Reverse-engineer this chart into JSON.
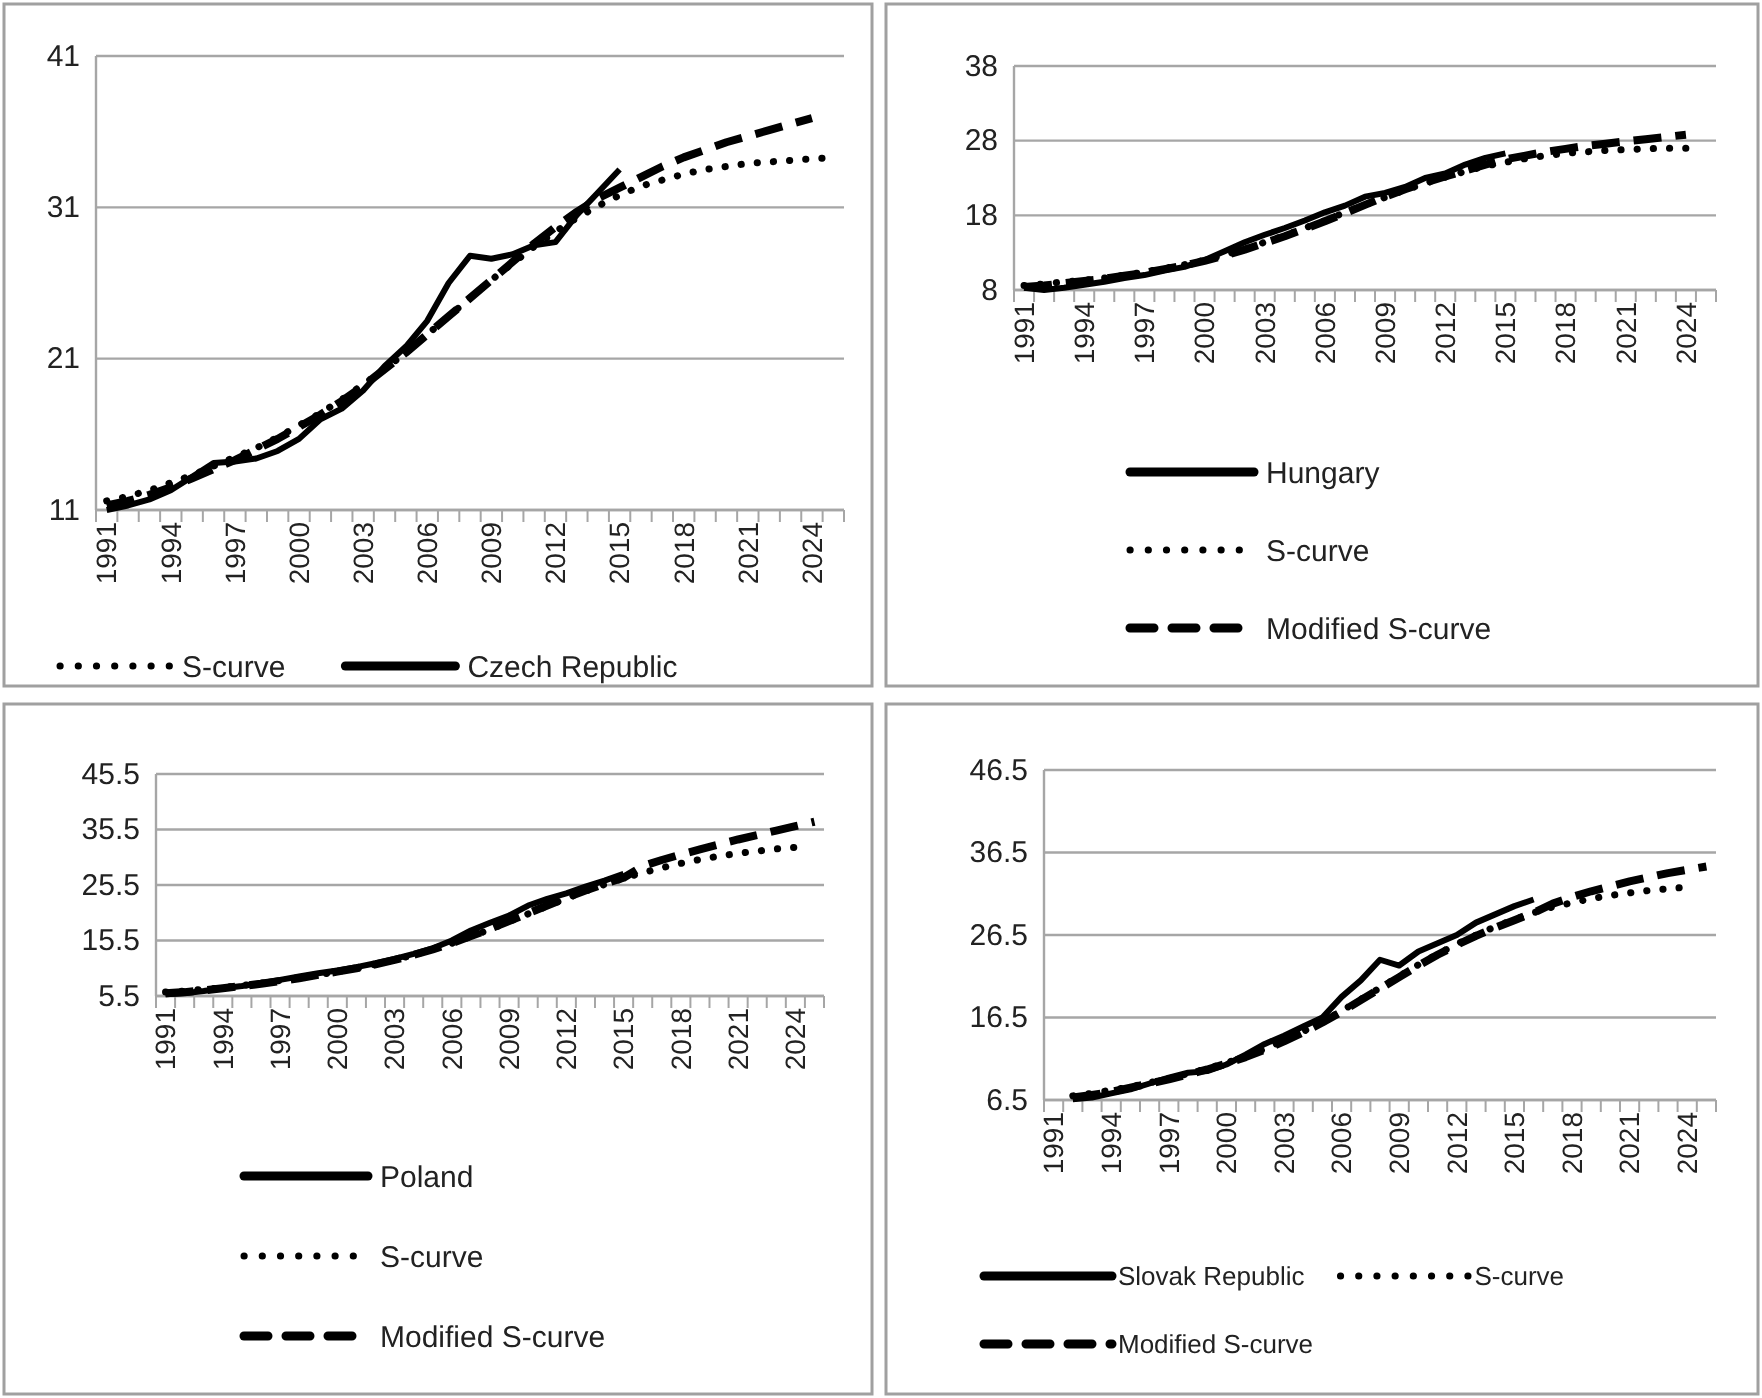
{
  "chart_data": [
    {
      "type": "line",
      "categories": [
        "1991",
        null,
        null,
        "1994",
        null,
        null,
        "1997",
        null,
        null,
        "2000",
        null,
        null,
        "2003",
        null,
        null,
        "2006",
        null,
        null,
        "2009",
        null,
        null,
        "2012",
        null,
        null,
        "2015",
        null,
        null,
        "2018",
        null,
        null,
        "2021",
        null,
        null,
        "2024",
        null
      ],
      "ylim": [
        11,
        41
      ],
      "yticks": [
        11,
        21,
        31,
        41
      ],
      "grid": "y",
      "legend": "bottom",
      "series": [
        {
          "name": "S-curve",
          "color": "#000000",
          "line_style": "dotted",
          "values": [
            11.6,
            11.9,
            12.3,
            12.8,
            13.3,
            13.9,
            14.5,
            15.1,
            15.8,
            16.6,
            17.4,
            18.3,
            19.3,
            20.3,
            21.4,
            22.6,
            23.8,
            25.0,
            26.2,
            27.3,
            28.4,
            29.4,
            30.3,
            31.1,
            31.8,
            32.4,
            32.8,
            33.2,
            33.5,
            33.7,
            33.9,
            34.0,
            34.1,
            34.2,
            34.3
          ]
        },
        {
          "name": "Czech Republic",
          "color": "#000000",
          "line_style": "solid",
          "values": [
            11.0,
            11.3,
            11.7,
            12.3,
            13.2,
            14.1,
            14.2,
            14.4,
            14.9,
            15.7,
            17.0,
            17.7,
            18.9,
            20.5,
            21.8,
            23.5,
            26.0,
            27.8,
            27.6,
            27.9,
            28.5,
            28.7,
            30.5,
            32.0,
            33.5,
            null,
            null,
            null,
            null,
            null,
            null,
            null,
            null,
            null,
            null
          ]
        },
        {
          "color": "#000000",
          "line_style": "dashed",
          "values": [
            11.3,
            11.6,
            12.0,
            12.5,
            13.1,
            13.7,
            14.3,
            15.0,
            15.7,
            16.5,
            17.3,
            18.2,
            19.2,
            20.3,
            21.4,
            22.6,
            23.8,
            25.0,
            26.2,
            27.4,
            28.6,
            29.7,
            30.7,
            31.6,
            32.3,
            33.0,
            33.7,
            34.3,
            34.8,
            35.3,
            35.7,
            36.1,
            36.5,
            36.9,
            null
          ]
        }
      ]
    },
    {
      "type": "line",
      "categories": [
        "1991",
        null,
        null,
        "1994",
        null,
        null,
        "1997",
        null,
        null,
        "2000",
        null,
        null,
        "2003",
        null,
        null,
        "2006",
        null,
        null,
        "2009",
        null,
        null,
        "2012",
        null,
        null,
        "2015",
        null,
        null,
        "2018",
        null,
        null,
        "2021",
        null,
        null,
        "2024",
        null
      ],
      "ylim": [
        8,
        38
      ],
      "yticks": [
        8,
        18,
        28,
        38
      ],
      "grid": "y",
      "legend": "bottom",
      "series": [
        {
          "name": "Hungary",
          "color": "#000000",
          "line_style": "solid",
          "values": [
            8.3,
            8.0,
            8.3,
            8.7,
            9.1,
            9.6,
            10.0,
            10.6,
            11.1,
            12.0,
            13.2,
            14.4,
            15.4,
            16.3,
            17.3,
            18.4,
            19.3,
            20.5,
            21.0,
            21.8,
            23.0,
            23.6,
            24.8,
            25.7,
            26.3,
            null,
            null,
            null,
            null,
            null,
            null,
            null,
            null,
            null,
            null
          ]
        },
        {
          "name": "S-curve",
          "color": "#000000",
          "line_style": "dotted",
          "values": [
            8.6,
            8.8,
            9.1,
            9.3,
            9.6,
            10.0,
            10.4,
            10.9,
            11.4,
            12.0,
            12.7,
            13.5,
            14.4,
            15.3,
            16.3,
            17.3,
            18.4,
            19.4,
            20.4,
            21.4,
            22.3,
            23.1,
            23.9,
            24.6,
            25.1,
            25.6,
            26.0,
            26.3,
            26.5,
            26.7,
            26.8,
            26.9,
            27.0,
            27.0,
            null
          ]
        },
        {
          "name": "Modified S-curve",
          "color": "#000000",
          "line_style": "dashed",
          "values": [
            8.4,
            8.6,
            8.9,
            9.2,
            9.5,
            9.9,
            10.3,
            10.8,
            11.3,
            11.9,
            12.6,
            13.4,
            14.3,
            15.2,
            16.2,
            17.2,
            18.3,
            19.4,
            20.5,
            21.5,
            22.4,
            23.2,
            24.0,
            24.8,
            25.5,
            26.0,
            26.5,
            26.9,
            27.3,
            27.6,
            27.9,
            28.2,
            28.5,
            28.8,
            null
          ]
        }
      ]
    },
    {
      "type": "line",
      "categories": [
        "1991",
        null,
        null,
        "1994",
        null,
        null,
        "1997",
        null,
        null,
        "2000",
        null,
        null,
        "2003",
        null,
        null,
        "2006",
        null,
        null,
        "2009",
        null,
        null,
        "2012",
        null,
        null,
        "2015",
        null,
        null,
        "2018",
        null,
        null,
        "2021",
        null,
        null,
        "2024",
        null
      ],
      "ylim": [
        5.5,
        45.5
      ],
      "yticks": [
        5.5,
        15.5,
        25.5,
        35.5,
        45.5
      ],
      "grid": "y",
      "legend": "bottom",
      "series": [
        {
          "name": "Poland",
          "color": "#000000",
          "line_style": "solid",
          "values": [
            5.8,
            6.0,
            6.4,
            6.9,
            7.3,
            7.8,
            8.4,
            9.0,
            9.6,
            10.1,
            10.7,
            11.4,
            12.2,
            13.1,
            14.1,
            15.5,
            17.3,
            18.7,
            20.0,
            21.8,
            23.0,
            24.0,
            25.2,
            26.3,
            27.5,
            null,
            null,
            null,
            null,
            null,
            null,
            null,
            null,
            null,
            null
          ]
        },
        {
          "name": "S-curve",
          "color": "#000000",
          "line_style": "dotted",
          "values": [
            6.2,
            6.4,
            6.7,
            7.0,
            7.4,
            7.8,
            8.3,
            8.8,
            9.3,
            9.9,
            10.5,
            11.2,
            12.0,
            12.9,
            13.9,
            15.0,
            16.2,
            17.5,
            18.9,
            20.3,
            21.7,
            23.1,
            24.4,
            25.6,
            26.7,
            27.7,
            28.6,
            29.4,
            30.1,
            30.7,
            31.2,
            31.6,
            32.0,
            32.3,
            null
          ]
        },
        {
          "name": "Modified S-curve",
          "color": "#000000",
          "line_style": "dashed",
          "values": [
            6.0,
            6.2,
            6.5,
            6.9,
            7.3,
            7.7,
            8.2,
            8.7,
            9.3,
            9.9,
            10.5,
            11.2,
            12.0,
            12.9,
            13.9,
            15.0,
            16.3,
            17.6,
            19.0,
            20.4,
            21.8,
            23.2,
            24.5,
            25.7,
            26.8,
            28.9,
            30.0,
            31.0,
            31.9,
            32.8,
            33.7,
            34.5,
            35.3,
            36.1,
            36.9
          ]
        }
      ]
    },
    {
      "type": "line",
      "categories": [
        "1991",
        null,
        null,
        "1994",
        null,
        null,
        "1997",
        null,
        null,
        "2000",
        null,
        null,
        "2003",
        null,
        null,
        "2006",
        null,
        null,
        "2009",
        null,
        null,
        "2012",
        null,
        null,
        "2015",
        null,
        null,
        "2018",
        null,
        null,
        "2021",
        null,
        null,
        "2024",
        null
      ],
      "ylim": [
        6.5,
        46.5
      ],
      "yticks": [
        6.5,
        16.5,
        26.5,
        36.5,
        46.5
      ],
      "grid": "y",
      "legend": "bottom",
      "series": [
        {
          "name": "Slovak Republic",
          "color": "#000000",
          "line_style": "solid",
          "values": [
            null,
            6.6,
            6.8,
            7.3,
            7.8,
            8.5,
            9.2,
            9.8,
            10.0,
            10.8,
            12.0,
            13.3,
            14.3,
            15.4,
            16.5,
            19.0,
            21.0,
            23.5,
            22.8,
            24.5,
            25.5,
            26.5,
            28.0,
            29.0,
            30.0,
            30.8,
            null,
            null,
            null,
            null,
            null,
            null,
            null,
            null,
            null
          ]
        },
        {
          "name": "S-curve",
          "color": "#000000",
          "line_style": "dotted",
          "values": [
            null,
            7.0,
            7.3,
            7.7,
            8.1,
            8.6,
            9.1,
            9.7,
            10.3,
            11.0,
            11.8,
            12.7,
            13.7,
            14.8,
            16.0,
            17.3,
            18.7,
            20.1,
            21.5,
            22.9,
            24.2,
            25.4,
            26.5,
            27.5,
            28.4,
            29.2,
            29.9,
            30.4,
            30.9,
            31.3,
            31.6,
            31.9,
            32.1,
            32.3,
            null
          ]
        },
        {
          "name": "Modified S-curve",
          "color": "#000000",
          "line_style": "dashed",
          "values": [
            null,
            6.8,
            7.1,
            7.5,
            8.0,
            8.5,
            9.0,
            9.6,
            10.2,
            10.9,
            11.7,
            12.6,
            13.6,
            14.7,
            15.9,
            17.2,
            18.6,
            20.0,
            21.4,
            22.8,
            24.1,
            25.3,
            26.4,
            27.4,
            28.3,
            29.2,
            30.3,
            31.1,
            31.8,
            32.4,
            33.0,
            33.5,
            34.0,
            34.4,
            34.8
          ]
        }
      ]
    }
  ]
}
